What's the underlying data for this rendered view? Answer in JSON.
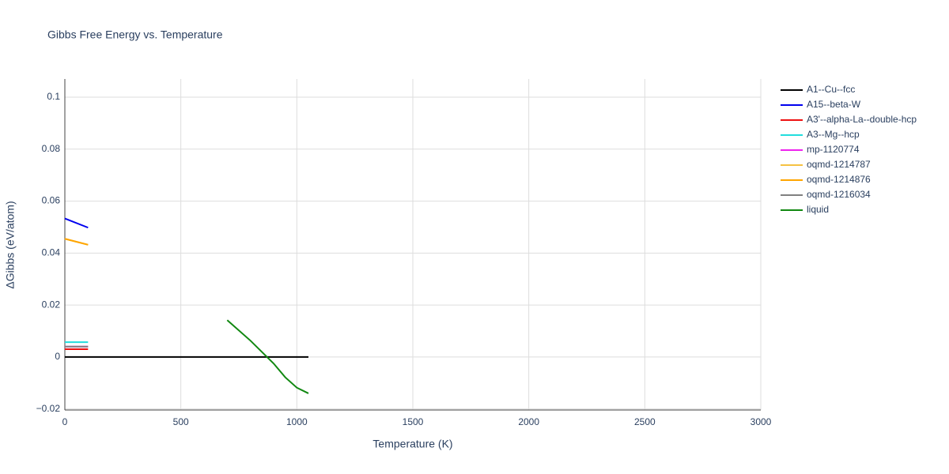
{
  "chart_data": {
    "type": "line",
    "title": "Gibbs Free Energy vs. Temperature",
    "x_label": "Temperature (K)",
    "y_label": "ΔGibbs (eV/atom)",
    "xlim": [
      0,
      3000
    ],
    "ylim": [
      -0.0204,
      0.107
    ],
    "xticks": [
      0,
      500,
      1000,
      1500,
      2000,
      2500,
      3000
    ],
    "yticks": [
      {
        "value": -0.02,
        "label": "−0.02"
      },
      0,
      0.02,
      0.04,
      0.06,
      0.08,
      0.1
    ],
    "grid": true,
    "legend": "right",
    "series": [
      {
        "name": "A1--Cu--fcc",
        "color": "#000000",
        "x": [
          0,
          1050
        ],
        "values": [
          0,
          0
        ]
      },
      {
        "name": "A15--beta-W",
        "color": "#0000ee",
        "x": [
          0,
          100
        ],
        "values": [
          0.0533,
          0.0498
        ]
      },
      {
        "name": "A3'--alpha-La--double-hcp",
        "color": "#ee1111",
        "x": [
          0,
          100
        ],
        "values": [
          0.003,
          0.003
        ]
      },
      {
        "name": "A3--Mg--hcp",
        "color": "#22dddd",
        "x": [
          0,
          100
        ],
        "values": [
          0.0057,
          0.0057
        ]
      },
      {
        "name": "mp-1120774",
        "color": "#ee22ee",
        "x": [
          0,
          100
        ],
        "values": [
          0.004,
          0.004
        ]
      },
      {
        "name": "oqmd-1214787",
        "color": "#f5c242",
        "x": [
          0,
          100
        ],
        "values": [
          0.0455,
          0.0432
        ]
      },
      {
        "name": "oqmd-1214876",
        "color": "#ffa500",
        "x": [
          0,
          100
        ],
        "values": [
          0.0455,
          0.0432
        ]
      },
      {
        "name": "oqmd-1216034",
        "color": "#808080",
        "x": [
          0,
          100
        ],
        "values": [
          0.004,
          0.004
        ]
      },
      {
        "name": "liquid",
        "color": "#118811",
        "x": [
          700,
          800,
          900,
          950,
          1000,
          1050
        ],
        "values": [
          0.0142,
          0.0063,
          -0.0025,
          -0.0078,
          -0.0118,
          -0.014
        ]
      }
    ]
  }
}
